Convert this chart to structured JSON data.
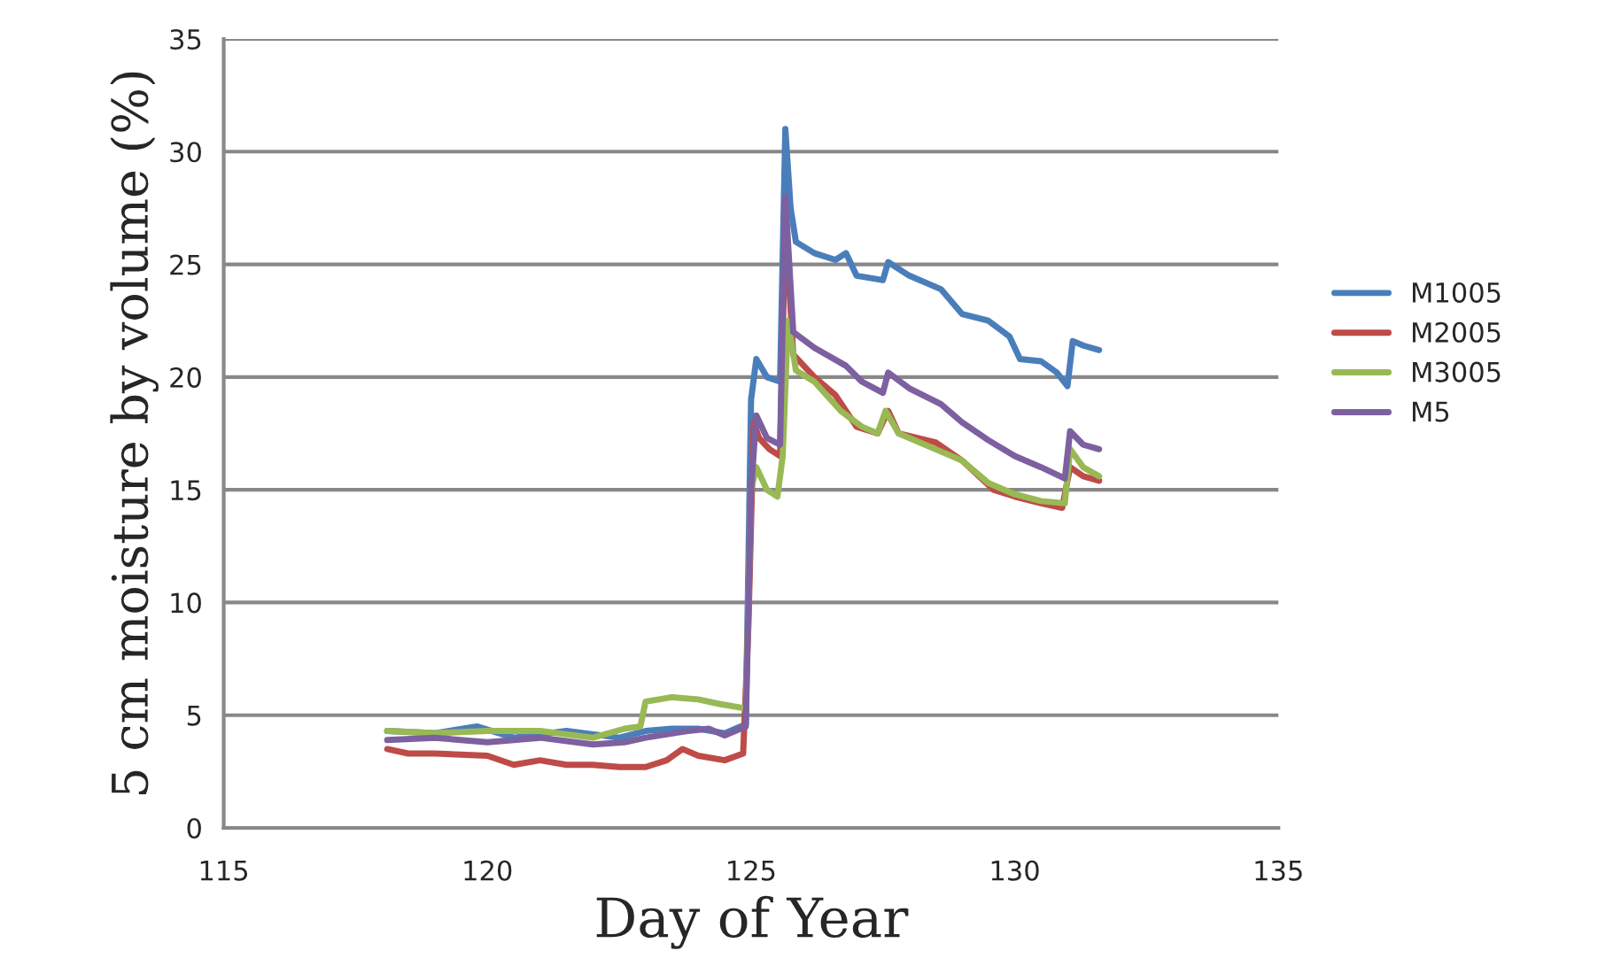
{
  "chart_data": {
    "type": "line",
    "xlabel": "Day of Year",
    "ylabel": "5 cm moisture by volume (%)",
    "xlim": [
      115,
      135
    ],
    "xticks": [
      115,
      120,
      125,
      130,
      135
    ],
    "ylim": [
      0,
      35
    ],
    "yticks": [
      0,
      5,
      10,
      15,
      20,
      25,
      30,
      35
    ],
    "grid": "y",
    "legend": "right",
    "marker": "none",
    "line_style": "solid",
    "series": [
      {
        "name": "M1005",
        "color": "#4a7ebb",
        "x": [
          118.1,
          119,
          119.8,
          120.5,
          121.5,
          122.5,
          123,
          123.5,
          124,
          124.5,
          124.9,
          125.0,
          125.1,
          125.3,
          125.55,
          125.65,
          125.75,
          125.85,
          126.2,
          126.6,
          126.8,
          127.0,
          127.5,
          127.6,
          128.0,
          128.6,
          129.0,
          129.5,
          129.9,
          130.1,
          130.5,
          130.8,
          131.0,
          131.1,
          131.3,
          131.6
        ],
        "values": [
          4.3,
          4.2,
          4.5,
          4.0,
          4.3,
          4.0,
          4.3,
          4.4,
          4.4,
          4.2,
          4.6,
          19.0,
          20.8,
          20.0,
          19.8,
          31.0,
          27.5,
          26.0,
          25.5,
          25.2,
          25.5,
          24.5,
          24.3,
          25.1,
          24.5,
          23.9,
          22.8,
          22.5,
          21.8,
          20.8,
          20.7,
          20.2,
          19.6,
          21.6,
          21.4,
          21.2
        ]
      },
      {
        "name": "M2005",
        "color": "#be4b48",
        "x": [
          118.1,
          118.5,
          119,
          120,
          120.5,
          121,
          121.5,
          122,
          122.5,
          123,
          123.4,
          123.7,
          124,
          124.5,
          124.85,
          124.95,
          125.05,
          125.15,
          125.35,
          125.55,
          125.65,
          125.8,
          126.2,
          126.6,
          127.0,
          127.4,
          127.6,
          127.8,
          128.5,
          129.0,
          129.6,
          130.0,
          130.5,
          130.9,
          131.05,
          131.3,
          131.6
        ],
        "values": [
          3.5,
          3.3,
          3.3,
          3.2,
          2.8,
          3.0,
          2.8,
          2.8,
          2.7,
          2.7,
          3.0,
          3.5,
          3.2,
          3.0,
          3.3,
          9,
          18,
          17.3,
          16.8,
          16.5,
          27,
          21.0,
          20.0,
          19.2,
          17.8,
          17.5,
          18.5,
          17.5,
          17.1,
          16.3,
          15.0,
          14.7,
          14.4,
          14.2,
          16.0,
          15.6,
          15.4
        ]
      },
      {
        "name": "M3005",
        "color": "#98b954",
        "x": [
          118.1,
          119,
          120,
          121,
          122,
          122.6,
          122.9,
          123.0,
          123.5,
          124,
          124.4,
          124.9,
          125.0,
          125.1,
          125.3,
          125.5,
          125.6,
          125.7,
          125.85,
          126.2,
          126.7,
          127.1,
          127.4,
          127.55,
          127.8,
          128.5,
          129.0,
          129.5,
          130.0,
          130.5,
          130.95,
          131.05,
          131.3,
          131.6
        ],
        "values": [
          4.3,
          4.2,
          4.3,
          4.3,
          4.0,
          4.4,
          4.5,
          5.6,
          5.8,
          5.7,
          5.5,
          5.3,
          15,
          16.0,
          15.0,
          14.7,
          16.5,
          22.5,
          20.3,
          19.8,
          18.5,
          17.8,
          17.5,
          18.5,
          17.5,
          16.8,
          16.3,
          15.3,
          14.8,
          14.5,
          14.4,
          16.8,
          16.0,
          15.6
        ]
      },
      {
        "name": "M5",
        "color": "#7d60a0",
        "x": [
          118.1,
          119,
          120,
          121,
          122,
          122.6,
          123,
          123.8,
          124.2,
          124.5,
          124.9,
          125.0,
          125.1,
          125.3,
          125.55,
          125.65,
          125.8,
          126.2,
          126.8,
          127.1,
          127.5,
          127.6,
          128.0,
          128.6,
          129.0,
          129.5,
          130.0,
          130.5,
          130.95,
          131.05,
          131.3,
          131.6
        ],
        "values": [
          3.9,
          4.0,
          3.8,
          4.0,
          3.7,
          3.8,
          4.0,
          4.3,
          4.4,
          4.1,
          4.5,
          15,
          18.3,
          17.3,
          17.0,
          28.0,
          22.0,
          21.3,
          20.5,
          19.8,
          19.3,
          20.2,
          19.5,
          18.8,
          18.0,
          17.2,
          16.5,
          16.0,
          15.5,
          17.6,
          17.0,
          16.8
        ]
      }
    ]
  }
}
